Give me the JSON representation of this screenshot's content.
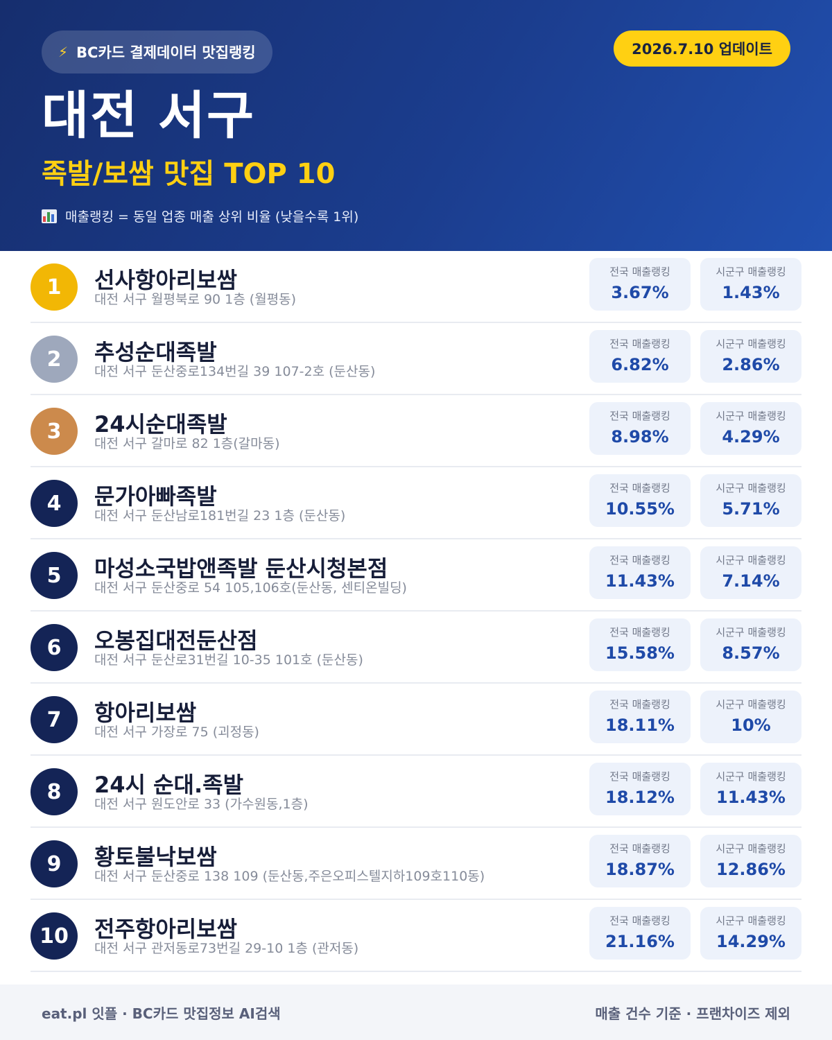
{
  "header": {
    "brand_icon": "lightning-bolt-icon",
    "brand": "BC카드 결제데이터 맛집랭킹",
    "update": "2026.7.10 업데이트",
    "region": "대전 서구",
    "subtitle": "족발/보쌈 맛집 TOP 10",
    "note_icon": "bar-chart-icon",
    "note": "매출랭킹 = 동일 업종 매출 상위 비율 (낮을수록 1위)"
  },
  "stat_labels": {
    "national": "전국 매출랭킹",
    "local": "시군구 매출랭킹"
  },
  "colors": {
    "gold": "#f2b705",
    "silver": "#9ea8bc",
    "bronze": "#cc8a4c",
    "navy": "#142456",
    "accent_yellow": "#ffd012",
    "value_blue": "#1f4aa8"
  },
  "restaurants": [
    {
      "rank": "1",
      "name": "선사항아리보쌈",
      "address": "대전 서구 월평북로 90 1층 (월평동)",
      "national": "3.67%",
      "local": "1.43%"
    },
    {
      "rank": "2",
      "name": "추성순대족발",
      "address": "대전 서구 둔산중로134번길 39 107-2호 (둔산동)",
      "national": "6.82%",
      "local": "2.86%"
    },
    {
      "rank": "3",
      "name": "24시순대족발",
      "address": "대전 서구 갈마로 82 1층(갈마동)",
      "national": "8.98%",
      "local": "4.29%"
    },
    {
      "rank": "4",
      "name": "문가아빠족발",
      "address": "대전 서구 둔산남로181번길 23 1층 (둔산동)",
      "national": "10.55%",
      "local": "5.71%"
    },
    {
      "rank": "5",
      "name": "마성소국밥앤족발 둔산시청본점",
      "address": "대전 서구 둔산중로 54 105,106호(둔산동, 센티온빌딩)",
      "national": "11.43%",
      "local": "7.14%"
    },
    {
      "rank": "6",
      "name": "오봉집대전둔산점",
      "address": "대전 서구 둔산로31번길 10-35 101호 (둔산동)",
      "national": "15.58%",
      "local": "8.57%"
    },
    {
      "rank": "7",
      "name": "항아리보쌈",
      "address": "대전 서구 가장로 75 (괴정동)",
      "national": "18.11%",
      "local": "10%"
    },
    {
      "rank": "8",
      "name": "24시 순대.족발",
      "address": "대전 서구 원도안로 33 (가수원동,1층)",
      "national": "18.12%",
      "local": "11.43%"
    },
    {
      "rank": "9",
      "name": "황토불낙보쌈",
      "address": "대전 서구 둔산중로 138 109 (둔산동,주은오피스텔지하109호110동)",
      "national": "18.87%",
      "local": "12.86%"
    },
    {
      "rank": "10",
      "name": "전주항아리보쌈",
      "address": "대전 서구 관저동로73번길 29-10 1층 (관저동)",
      "national": "21.16%",
      "local": "14.29%"
    }
  ],
  "footer": {
    "left": "eat.pl 잇플 · BC카드 맛집정보 AI검색",
    "right": "매출 건수 기준 · 프랜차이즈 제외"
  }
}
